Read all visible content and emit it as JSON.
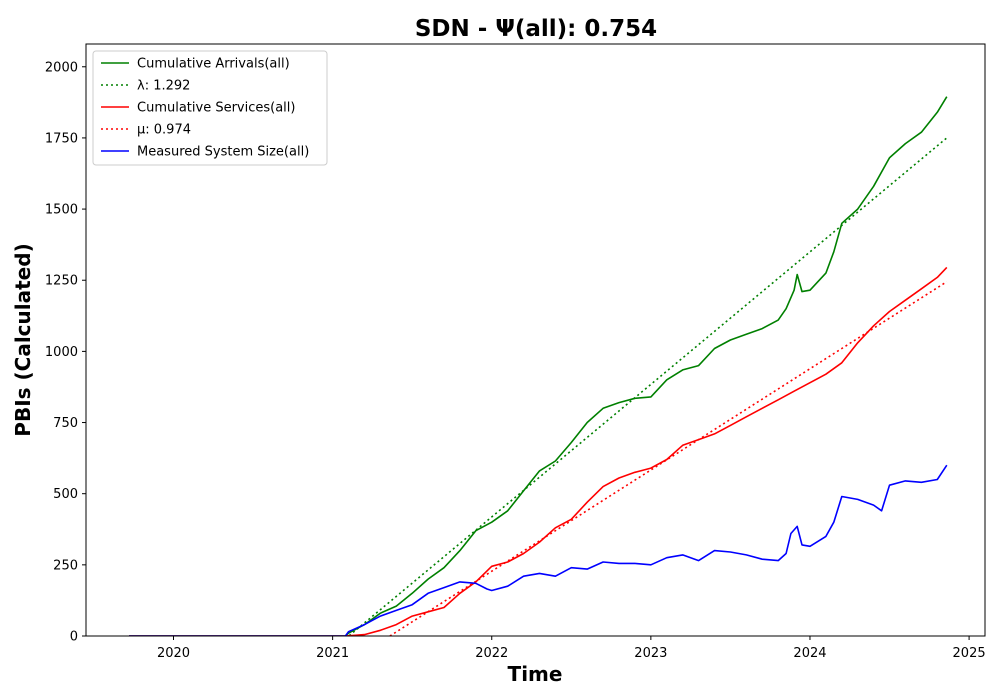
{
  "chart_data": {
    "type": "line",
    "title": "SDN -  Ψ(all): 0.754",
    "xlabel": "Time",
    "ylabel": "PBIs (Calculated)",
    "xlim": [
      2019.45,
      2025.1
    ],
    "ylim": [
      0,
      2080
    ],
    "xticks": [
      2020,
      2021,
      2022,
      2023,
      2024,
      2025
    ],
    "xtick_labels": [
      "2020",
      "2021",
      "2022",
      "2023",
      "2024",
      "2025"
    ],
    "yticks": [
      0,
      250,
      500,
      750,
      1000,
      1250,
      1500,
      1750,
      2000
    ],
    "ytick_labels": [
      "0",
      "250",
      "500",
      "750",
      "1000",
      "1250",
      "1500",
      "1750",
      "2000"
    ],
    "grid": false,
    "legend_position": "top-left",
    "series": [
      {
        "name": "Cumulative Arrivals(all)",
        "style": "solid",
        "color": "#008000",
        "x": [
          2019.72,
          2021.08,
          2021.1,
          2021.2,
          2021.3,
          2021.4,
          2021.5,
          2021.6,
          2021.7,
          2021.8,
          2021.9,
          2022.0,
          2022.1,
          2022.2,
          2022.3,
          2022.4,
          2022.5,
          2022.6,
          2022.7,
          2022.8,
          2022.9,
          2023.0,
          2023.1,
          2023.2,
          2023.3,
          2023.4,
          2023.5,
          2023.6,
          2023.7,
          2023.8,
          2023.85,
          2023.9,
          2023.92,
          2023.95,
          2024.0,
          2024.1,
          2024.15,
          2024.2,
          2024.3,
          2024.4,
          2024.5,
          2024.6,
          2024.7,
          2024.8,
          2024.86
        ],
        "y": [
          0,
          0,
          10,
          40,
          80,
          105,
          150,
          200,
          240,
          300,
          370,
          400,
          440,
          510,
          580,
          615,
          680,
          750,
          800,
          820,
          835,
          840,
          900,
          935,
          950,
          1010,
          1040,
          1060,
          1080,
          1110,
          1150,
          1215,
          1270,
          1210,
          1215,
          1275,
          1350,
          1450,
          1500,
          1580,
          1680,
          1730,
          1770,
          1840,
          1895
        ]
      },
      {
        "name": "λ: 1.292",
        "style": "dotted",
        "color": "#008000",
        "x": [
          2021.08,
          2024.86
        ],
        "y": [
          -10,
          1750
        ]
      },
      {
        "name": "Cumulative Services(all)",
        "style": "solid",
        "color": "#ff0000",
        "x": [
          2019.72,
          2021.08,
          2021.2,
          2021.3,
          2021.4,
          2021.5,
          2021.6,
          2021.7,
          2021.8,
          2021.9,
          2022.0,
          2022.1,
          2022.2,
          2022.3,
          2022.4,
          2022.5,
          2022.6,
          2022.7,
          2022.8,
          2022.9,
          2023.0,
          2023.1,
          2023.2,
          2023.3,
          2023.4,
          2023.5,
          2023.6,
          2023.7,
          2023.8,
          2023.9,
          2024.0,
          2024.1,
          2024.2,
          2024.3,
          2024.4,
          2024.5,
          2024.6,
          2024.7,
          2024.8,
          2024.86
        ],
        "y": [
          0,
          0,
          5,
          20,
          40,
          70,
          85,
          100,
          150,
          190,
          245,
          260,
          290,
          330,
          380,
          410,
          470,
          525,
          555,
          575,
          590,
          620,
          670,
          690,
          710,
          740,
          770,
          800,
          830,
          860,
          890,
          920,
          960,
          1030,
          1090,
          1140,
          1180,
          1220,
          1260,
          1295
        ]
      },
      {
        "name": "μ: 0.974",
        "style": "dotted",
        "color": "#ff0000",
        "x": [
          2021.36,
          2024.86
        ],
        "y": [
          0,
          1245
        ]
      },
      {
        "name": "Measured System Size(all)",
        "style": "solid",
        "color": "#0000ff",
        "x": [
          2019.72,
          2021.08,
          2021.1,
          2021.2,
          2021.3,
          2021.4,
          2021.5,
          2021.6,
          2021.7,
          2021.8,
          2021.9,
          2021.97,
          2022.0,
          2022.1,
          2022.2,
          2022.3,
          2022.4,
          2022.5,
          2022.6,
          2022.7,
          2022.8,
          2022.9,
          2023.0,
          2023.1,
          2023.2,
          2023.3,
          2023.4,
          2023.5,
          2023.6,
          2023.7,
          2023.8,
          2023.85,
          2023.88,
          2023.92,
          2023.95,
          2024.0,
          2024.1,
          2024.15,
          2024.2,
          2024.3,
          2024.4,
          2024.45,
          2024.5,
          2024.6,
          2024.7,
          2024.8,
          2024.86
        ],
        "y": [
          0,
          0,
          15,
          40,
          70,
          90,
          110,
          150,
          170,
          190,
          185,
          165,
          160,
          175,
          210,
          220,
          210,
          240,
          235,
          260,
          255,
          255,
          250,
          275,
          285,
          265,
          300,
          295,
          285,
          270,
          265,
          290,
          360,
          385,
          320,
          315,
          350,
          400,
          490,
          480,
          460,
          440,
          530,
          545,
          540,
          550,
          600
        ]
      }
    ]
  }
}
